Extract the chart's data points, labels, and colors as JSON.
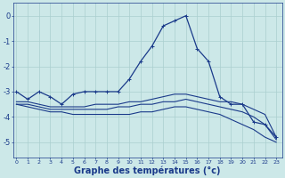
{
  "background_color": "#cce8e8",
  "grid_color": "#aacfcf",
  "line_color": "#1a3a8a",
  "xlabel": "Graphe des températures (°c)",
  "xlabel_fontsize": 7.0,
  "xtick_fontsize": 4.5,
  "ytick_fontsize": 6.0,
  "xticks": [
    0,
    1,
    2,
    3,
    4,
    5,
    6,
    7,
    8,
    9,
    10,
    11,
    12,
    13,
    14,
    15,
    16,
    17,
    18,
    19,
    20,
    21,
    22,
    23
  ],
  "yticks": [
    0,
    -1,
    -2,
    -3,
    -4,
    -5
  ],
  "ylim": [
    -5.6,
    0.5
  ],
  "xlim": [
    -0.3,
    23.5
  ],
  "series": [
    {
      "x": [
        0,
        1,
        2,
        3,
        4,
        5,
        6,
        7,
        8,
        9,
        10,
        11,
        12,
        13,
        14,
        15,
        16,
        17,
        18,
        19,
        20,
        21,
        22,
        23
      ],
      "y": [
        -3.0,
        -3.3,
        -3.0,
        -3.2,
        -3.5,
        -3.1,
        -3.0,
        -3.0,
        -3.0,
        -3.0,
        -2.5,
        -1.8,
        -1.2,
        -0.4,
        -0.2,
        0.0,
        -1.3,
        -1.8,
        -3.2,
        -3.5,
        -3.5,
        -4.2,
        -4.3,
        -4.8
      ],
      "marker": "+",
      "lw": 0.9,
      "ms": 3.0
    },
    {
      "x": [
        0,
        1,
        2,
        3,
        4,
        5,
        6,
        7,
        8,
        9,
        10,
        11,
        12,
        13,
        14,
        15,
        16,
        17,
        18,
        19,
        20,
        21,
        22,
        23
      ],
      "y": [
        -3.4,
        -3.4,
        -3.5,
        -3.6,
        -3.6,
        -3.6,
        -3.6,
        -3.5,
        -3.5,
        -3.5,
        -3.4,
        -3.4,
        -3.3,
        -3.2,
        -3.1,
        -3.1,
        -3.2,
        -3.3,
        -3.4,
        -3.4,
        -3.5,
        -3.7,
        -3.9,
        -4.8
      ],
      "marker": null,
      "lw": 0.8,
      "ms": 0
    },
    {
      "x": [
        0,
        1,
        2,
        3,
        4,
        5,
        6,
        7,
        8,
        9,
        10,
        11,
        12,
        13,
        14,
        15,
        16,
        17,
        18,
        19,
        20,
        21,
        22,
        23
      ],
      "y": [
        -3.5,
        -3.5,
        -3.6,
        -3.7,
        -3.7,
        -3.7,
        -3.7,
        -3.7,
        -3.7,
        -3.6,
        -3.6,
        -3.5,
        -3.5,
        -3.4,
        -3.4,
        -3.3,
        -3.4,
        -3.5,
        -3.6,
        -3.7,
        -3.8,
        -4.0,
        -4.3,
        -4.9
      ],
      "marker": null,
      "lw": 0.8,
      "ms": 0
    },
    {
      "x": [
        0,
        1,
        2,
        3,
        4,
        5,
        6,
        7,
        8,
        9,
        10,
        11,
        12,
        13,
        14,
        15,
        16,
        17,
        18,
        19,
        20,
        21,
        22,
        23
      ],
      "y": [
        -3.5,
        -3.6,
        -3.7,
        -3.8,
        -3.8,
        -3.9,
        -3.9,
        -3.9,
        -3.9,
        -3.9,
        -3.9,
        -3.8,
        -3.8,
        -3.7,
        -3.6,
        -3.6,
        -3.7,
        -3.8,
        -3.9,
        -4.1,
        -4.3,
        -4.5,
        -4.8,
        -5.0
      ],
      "marker": null,
      "lw": 0.8,
      "ms": 0
    }
  ]
}
